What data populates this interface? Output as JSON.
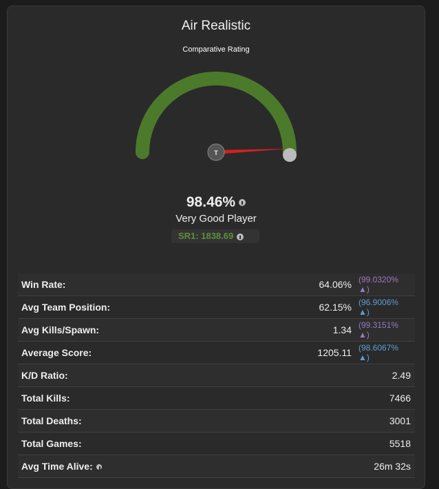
{
  "title": "Air Realistic",
  "subtitle": "Comparative Rating",
  "rating": {
    "value": 98.46,
    "label": "98.46%"
  },
  "gauge": {
    "min": 0,
    "max": 100
  },
  "rank": "Very Good Player",
  "sr": "SR1: 1838.69",
  "needle_label": "T",
  "stats": [
    {
      "label": "Win Rate:",
      "value": "64.06%",
      "percentile": "(99.0320% ▲)",
      "color": "#9a78c0"
    },
    {
      "label": "Avg Team Position:",
      "value": "62.15%",
      "percentile": "(96.9006% ▲)",
      "color": "#5d9fd0"
    },
    {
      "label": "Avg Kills/Spawn:",
      "value": "1.34",
      "percentile": "(99.3151% ▲)",
      "color": "#9a78c0"
    },
    {
      "label": "Average Score:",
      "value": "1205.11",
      "percentile": "(98.6067% ▲)",
      "color": "#5d9fd0"
    },
    {
      "label": "K/D Ratio:",
      "value": "2.49"
    },
    {
      "label": "Total Kills:",
      "value": "7466"
    },
    {
      "label": "Total Deaths:",
      "value": "3001"
    },
    {
      "label": "Total Games:",
      "value": "5518"
    },
    {
      "label": "Avg Time Alive:",
      "value": "26m 32s",
      "info": true
    }
  ]
}
